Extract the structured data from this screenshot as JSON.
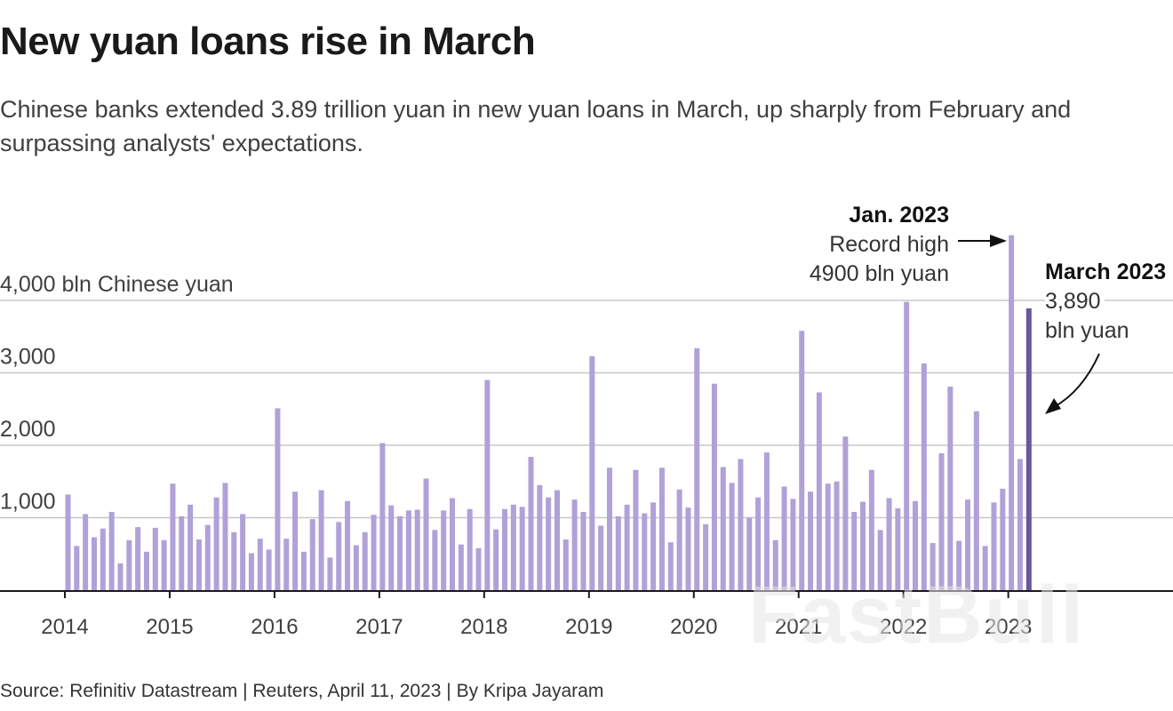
{
  "header": {
    "title": "New yuan loans rise in March",
    "subtitle": "Chinese banks extended 3.89 trillion yuan in new yuan loans in March, up sharply from February and surpassing analysts' expectations."
  },
  "annotations": {
    "jan2023_title": "Jan. 2023",
    "jan2023_line1": "Record high",
    "jan2023_line2": "4900 bln yuan",
    "mar2023_title": "March 2023",
    "mar2023_line1": "3,890",
    "mar2023_line2": "bln yuan"
  },
  "footer": {
    "source": "Source: Refinitiv Datastream | Reuters, April 11, 2023 | By Kripa Jayaram"
  },
  "watermark": "FastBull",
  "colors": {
    "bar": "#b0a1d8",
    "highlight_bar": "#6a559f",
    "gridline": "#c8c8c8",
    "axis": "#1a1a1a"
  },
  "chart_data": {
    "type": "bar",
    "title": "New yuan loans rise in March",
    "subtitle": "Chinese banks extended 3.89 trillion yuan in new yuan loans in March, up sharply from February and surpassing analysts' expectations.",
    "xlabel": "",
    "ylabel": "bln Chinese yuan",
    "y_tick_labels": [
      "1,000",
      "2,000",
      "3,000",
      "4,000 bln Chinese yuan"
    ],
    "y_ticks": [
      1000,
      2000,
      3000,
      4000
    ],
    "ylim": [
      0,
      4900
    ],
    "x_tick_labels": [
      "2014",
      "2015",
      "2016",
      "2017",
      "2018",
      "2019",
      "2020",
      "2021",
      "2022",
      "2023"
    ],
    "grid": true,
    "legend": null,
    "frequency": "monthly",
    "start": "2014-01",
    "end": "2023-03",
    "highlight_index": 110,
    "values": [
      1320,
      610,
      1050,
      730,
      850,
      1080,
      370,
      690,
      870,
      530,
      860,
      690,
      1470,
      1020,
      1180,
      700,
      900,
      1280,
      1480,
      800,
      1050,
      510,
      710,
      560,
      2510,
      710,
      1360,
      530,
      980,
      1380,
      450,
      940,
      1230,
      620,
      800,
      1040,
      2030,
      1170,
      1020,
      1100,
      1110,
      1540,
      830,
      1100,
      1270,
      630,
      1120,
      580,
      2900,
      840,
      1120,
      1180,
      1150,
      1840,
      1450,
      1280,
      1380,
      700,
      1250,
      1080,
      3230,
      890,
      1690,
      1020,
      1180,
      1660,
      1060,
      1210,
      1690,
      660,
      1390,
      1140,
      3340,
      910,
      2850,
      1700,
      1480,
      1810,
      1000,
      1280,
      1900,
      690,
      1430,
      1260,
      3580,
      1360,
      2730,
      1470,
      1500,
      2120,
      1080,
      1220,
      1660,
      830,
      1270,
      1130,
      3980,
      1230,
      3130,
      650,
      1890,
      2810,
      680,
      1250,
      2470,
      610,
      1210,
      1400,
      4900,
      1810,
      3890
    ],
    "annotations": [
      {
        "x": "2023-01",
        "text": "Jan. 2023 Record high 4900 bln yuan"
      },
      {
        "x": "2023-03",
        "text": "March 2023 3,890 bln yuan"
      }
    ]
  }
}
